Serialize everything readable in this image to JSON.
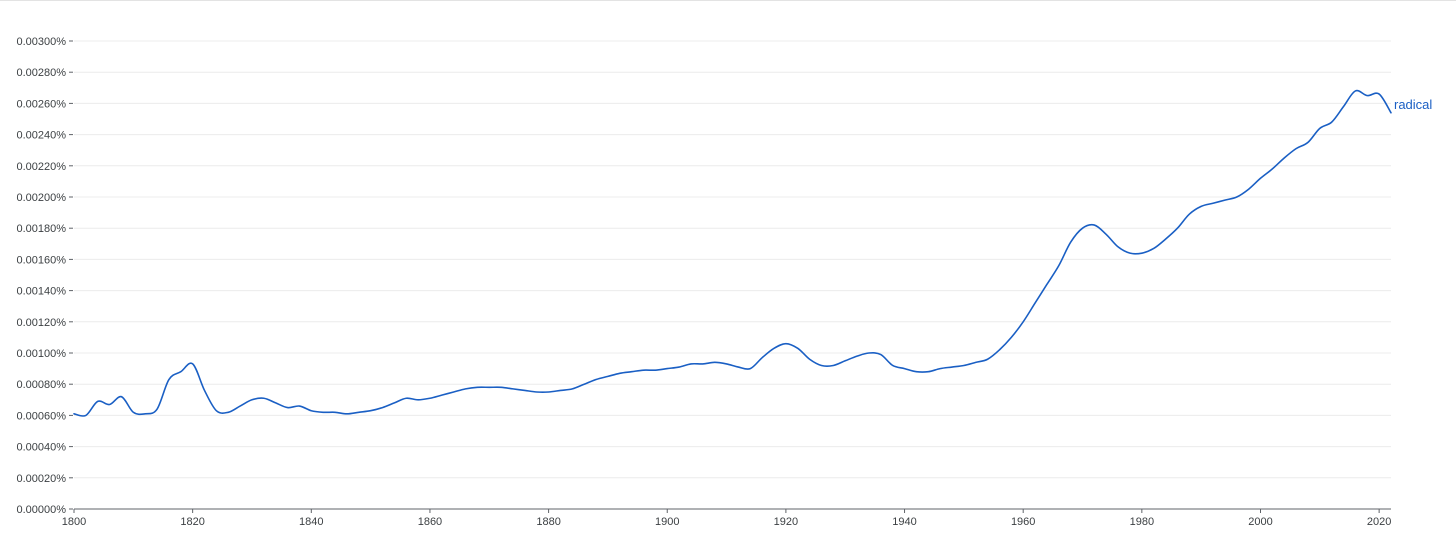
{
  "chart_data": {
    "type": "line",
    "title": "",
    "xlabel": "",
    "ylabel": "",
    "xlim": [
      1800,
      2022
    ],
    "ylim": [
      0,
      0.003
    ],
    "grid": true,
    "legend": "inline-end-label",
    "line_color": "#1a5fc4",
    "x_ticks": [
      1800,
      1820,
      1840,
      1860,
      1880,
      1900,
      1920,
      1940,
      1960,
      1980,
      2000,
      2020
    ],
    "x_tick_labels": [
      "1800",
      "1820",
      "1840",
      "1860",
      "1880",
      "1900",
      "1920",
      "1940",
      "1960",
      "1980",
      "2000",
      "2020"
    ],
    "y_ticks": [
      0,
      0.0002,
      0.0004,
      0.0006,
      0.0008,
      0.001,
      0.0012,
      0.0014,
      0.0016,
      0.0018,
      0.002,
      0.0022,
      0.0024,
      0.0026,
      0.0028,
      0.003
    ],
    "y_tick_labels": [
      "0.00000%",
      "0.00020%",
      "0.00040%",
      "0.00060%",
      "0.00080%",
      "0.00100%",
      "0.00120%",
      "0.00140%",
      "0.00160%",
      "0.00180%",
      "0.00200%",
      "0.00220%",
      "0.00240%",
      "0.00260%",
      "0.00280%",
      "0.00300%"
    ],
    "series": [
      {
        "name": "radical",
        "x": [
          1800,
          1802,
          1804,
          1806,
          1808,
          1810,
          1812,
          1814,
          1816,
          1818,
          1820,
          1822,
          1824,
          1826,
          1828,
          1830,
          1832,
          1834,
          1836,
          1838,
          1840,
          1842,
          1844,
          1846,
          1848,
          1850,
          1852,
          1854,
          1856,
          1858,
          1860,
          1862,
          1864,
          1866,
          1868,
          1870,
          1872,
          1874,
          1876,
          1878,
          1880,
          1882,
          1884,
          1886,
          1888,
          1890,
          1892,
          1894,
          1896,
          1898,
          1900,
          1902,
          1904,
          1906,
          1908,
          1910,
          1912,
          1914,
          1916,
          1918,
          1920,
          1922,
          1924,
          1926,
          1928,
          1930,
          1932,
          1934,
          1936,
          1938,
          1940,
          1942,
          1944,
          1946,
          1948,
          1950,
          1952,
          1954,
          1956,
          1958,
          1960,
          1962,
          1964,
          1966,
          1968,
          1970,
          1972,
          1974,
          1976,
          1978,
          1980,
          1982,
          1984,
          1986,
          1988,
          1990,
          1992,
          1994,
          1996,
          1998,
          2000,
          2002,
          2004,
          2006,
          2008,
          2010,
          2012,
          2014,
          2016,
          2018,
          2020,
          2022
        ],
        "values": [
          0.00061,
          0.0006,
          0.00069,
          0.00067,
          0.00072,
          0.00062,
          0.00061,
          0.00064,
          0.00083,
          0.00088,
          0.00093,
          0.00076,
          0.00063,
          0.00062,
          0.00066,
          0.0007,
          0.00071,
          0.00068,
          0.00065,
          0.00066,
          0.00063,
          0.00062,
          0.00062,
          0.00061,
          0.00062,
          0.00063,
          0.00065,
          0.00068,
          0.00071,
          0.0007,
          0.00071,
          0.00073,
          0.00075,
          0.00077,
          0.00078,
          0.00078,
          0.00078,
          0.00077,
          0.00076,
          0.00075,
          0.00075,
          0.00076,
          0.00077,
          0.0008,
          0.00083,
          0.00085,
          0.00087,
          0.00088,
          0.00089,
          0.00089,
          0.0009,
          0.00091,
          0.00093,
          0.00093,
          0.00094,
          0.00093,
          0.00091,
          0.0009,
          0.00097,
          0.00103,
          0.00106,
          0.00103,
          0.00096,
          0.00092,
          0.00092,
          0.00095,
          0.00098,
          0.001,
          0.00099,
          0.00092,
          0.0009,
          0.00088,
          0.00088,
          0.0009,
          0.00091,
          0.00092,
          0.00094,
          0.00096,
          0.00102,
          0.0011,
          0.0012,
          0.00132,
          0.00144,
          0.00156,
          0.00171,
          0.0018,
          0.00182,
          0.00176,
          0.00168,
          0.00164,
          0.00164,
          0.00167,
          0.00173,
          0.0018,
          0.00189,
          0.00194,
          0.00196,
          0.00198,
          0.002,
          0.00205,
          0.00212,
          0.00218,
          0.00225,
          0.00231,
          0.00235,
          0.00244,
          0.00248,
          0.00258,
          0.00268,
          0.00265,
          0.00266,
          0.00254
        ]
      }
    ]
  }
}
